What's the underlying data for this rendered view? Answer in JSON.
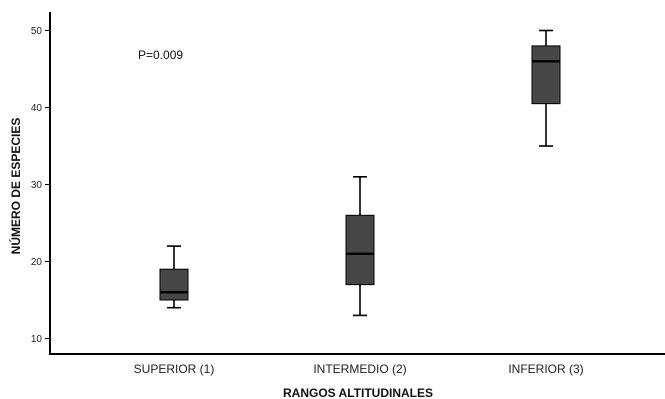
{
  "chart_data": {
    "type": "box",
    "xlabel": "RANGOS ALTITUDINALES",
    "ylabel": "NÚMERO DE ESPECIES",
    "ylim": [
      7,
      51.5
    ],
    "yticks": [
      10,
      20,
      30,
      40,
      50
    ],
    "grid": false,
    "box_color": "#474747",
    "line_color": "#000000",
    "annotation": "P=0.009",
    "categories": [
      "SUPERIOR (1)",
      "INTERMEDIO (2)",
      "INFERIOR (3)"
    ],
    "boxes": [
      {
        "whisker_low": 14,
        "q1": 15,
        "median": 16,
        "q3": 19,
        "whisker_high": 22
      },
      {
        "whisker_low": 13,
        "q1": 17,
        "median": 21,
        "q3": 26,
        "whisker_high": 31
      },
      {
        "whisker_low": 35,
        "q1": 40.5,
        "median": 46,
        "q3": 48,
        "whisker_high": 50
      }
    ]
  }
}
